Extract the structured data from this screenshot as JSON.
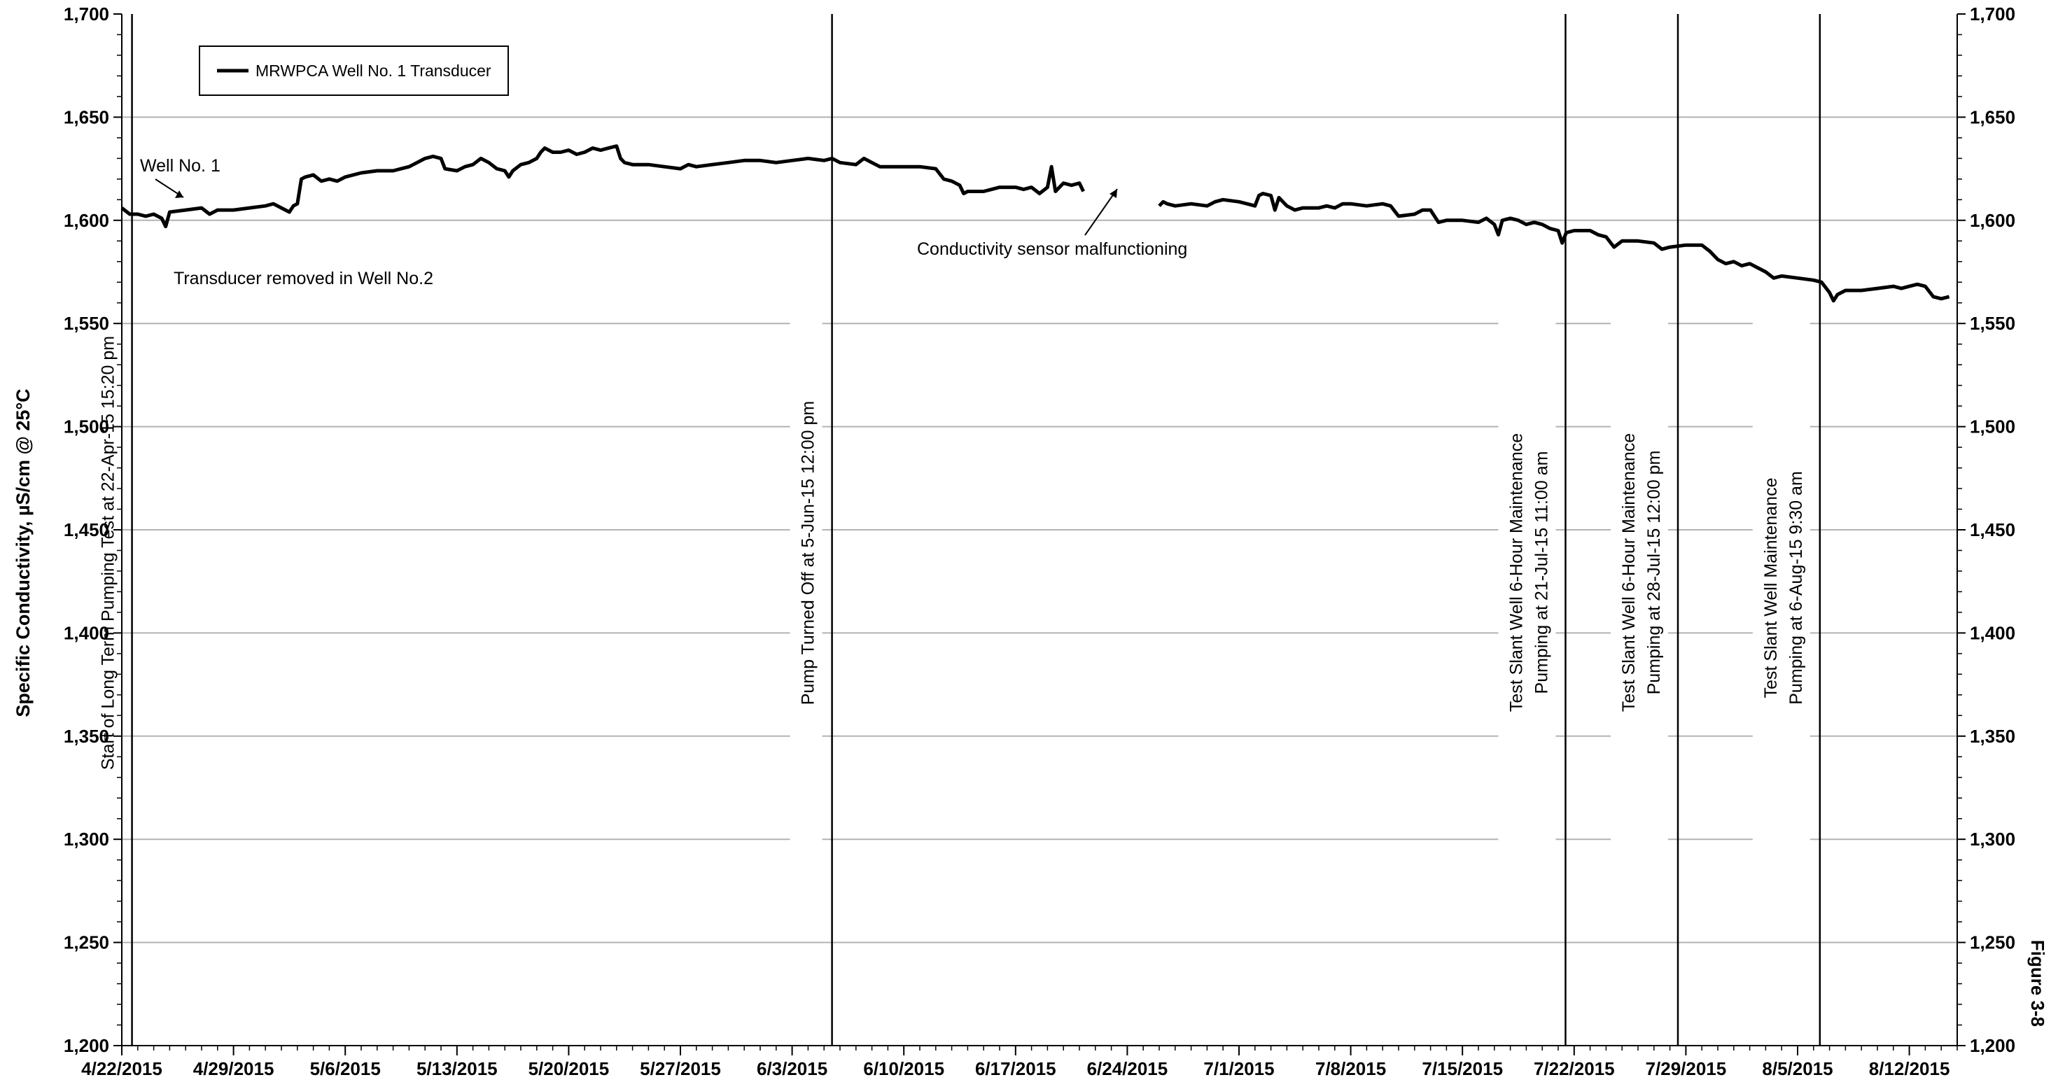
{
  "chart_data": {
    "type": "line",
    "ylabel": "Specific Conductivity, µS/cm @ 25°C",
    "ylim": [
      1200,
      1700
    ],
    "y_tick_step": 50,
    "y_minor_step": 10,
    "y_tick_labels": [
      "1,200",
      "1,250",
      "1,300",
      "1,350",
      "1,400",
      "1,450",
      "1,500",
      "1,550",
      "1,600",
      "1,650",
      "1,700"
    ],
    "xlim": [
      "2015-04-22",
      "2015-08-15"
    ],
    "x_tick_dates": [
      "2015-04-22",
      "2015-04-29",
      "2015-05-06",
      "2015-05-13",
      "2015-05-20",
      "2015-05-27",
      "2015-06-03",
      "2015-06-10",
      "2015-06-17",
      "2015-06-24",
      "2015-07-01",
      "2015-07-08",
      "2015-07-15",
      "2015-07-22",
      "2015-07-29",
      "2015-08-05",
      "2015-08-12"
    ],
    "x_tick_labels": [
      "4/22/2015",
      "4/29/2015",
      "5/6/2015",
      "5/13/2015",
      "5/20/2015",
      "5/27/2015",
      "6/3/2015",
      "6/10/2015",
      "6/17/2015",
      "6/24/2015",
      "7/1/2015",
      "7/8/2015",
      "7/15/2015",
      "7/22/2015",
      "7/29/2015",
      "8/5/2015",
      "8/12/2015"
    ],
    "grid": "horizontal",
    "legend_position": "top-left",
    "series": [
      {
        "name": "MRWPCA Well No. 1 Transducer",
        "color": "#000000",
        "segments": [
          [
            [
              "2015-04-22T00:00",
              1606
            ],
            [
              "2015-04-22T12:00",
              1603
            ],
            [
              "2015-04-23T00:00",
              1603
            ],
            [
              "2015-04-23T12:00",
              1602
            ],
            [
              "2015-04-24T00:00",
              1603
            ],
            [
              "2015-04-24T12:00",
              1601
            ],
            [
              "2015-04-24T18:00",
              1597
            ],
            [
              "2015-04-25T00:00",
              1604
            ],
            [
              "2015-04-26T00:00",
              1605
            ],
            [
              "2015-04-27T00:00",
              1606
            ],
            [
              "2015-04-27T12:00",
              1603
            ],
            [
              "2015-04-28T00:00",
              1605
            ],
            [
              "2015-04-29T00:00",
              1605
            ],
            [
              "2015-04-30T00:00",
              1606
            ],
            [
              "2015-05-01T00:00",
              1607
            ],
            [
              "2015-05-01T12:00",
              1608
            ],
            [
              "2015-05-02T00:00",
              1606
            ],
            [
              "2015-05-02T12:00",
              1604
            ],
            [
              "2015-05-02T18:00",
              1607
            ],
            [
              "2015-05-03T00:00",
              1608
            ],
            [
              "2015-05-03T06:00",
              1620
            ],
            [
              "2015-05-03T12:00",
              1621
            ],
            [
              "2015-05-04T00:00",
              1622
            ],
            [
              "2015-05-04T12:00",
              1619
            ],
            [
              "2015-05-05T00:00",
              1620
            ],
            [
              "2015-05-05T12:00",
              1619
            ],
            [
              "2015-05-06T00:00",
              1621
            ],
            [
              "2015-05-07T00:00",
              1623
            ],
            [
              "2015-05-08T00:00",
              1624
            ],
            [
              "2015-05-09T00:00",
              1624
            ],
            [
              "2015-05-09T12:00",
              1625
            ],
            [
              "2015-05-10T00:00",
              1626
            ],
            [
              "2015-05-10T12:00",
              1628
            ],
            [
              "2015-05-11T00:00",
              1630
            ],
            [
              "2015-05-11T12:00",
              1631
            ],
            [
              "2015-05-12T00:00",
              1630
            ],
            [
              "2015-05-12T06:00",
              1625
            ],
            [
              "2015-05-13T00:00",
              1624
            ],
            [
              "2015-05-13T12:00",
              1626
            ],
            [
              "2015-05-14T00:00",
              1627
            ],
            [
              "2015-05-14T12:00",
              1630
            ],
            [
              "2015-05-15T00:00",
              1628
            ],
            [
              "2015-05-15T12:00",
              1625
            ],
            [
              "2015-05-16T00:00",
              1624
            ],
            [
              "2015-05-16T06:00",
              1621
            ],
            [
              "2015-05-16T12:00",
              1624
            ],
            [
              "2015-05-17T00:00",
              1627
            ],
            [
              "2015-05-17T12:00",
              1628
            ],
            [
              "2015-05-18T00:00",
              1630
            ],
            [
              "2015-05-18T06:00",
              1633
            ],
            [
              "2015-05-18T12:00",
              1635
            ],
            [
              "2015-05-19T00:00",
              1633
            ],
            [
              "2015-05-19T12:00",
              1633
            ],
            [
              "2015-05-20T00:00",
              1634
            ],
            [
              "2015-05-20T12:00",
              1632
            ],
            [
              "2015-05-21T00:00",
              1633
            ],
            [
              "2015-05-21T12:00",
              1635
            ],
            [
              "2015-05-22T00:00",
              1634
            ],
            [
              "2015-05-22T12:00",
              1635
            ],
            [
              "2015-05-23T00:00",
              1636
            ],
            [
              "2015-05-23T06:00",
              1630
            ],
            [
              "2015-05-23T12:00",
              1628
            ],
            [
              "2015-05-24T00:00",
              1627
            ],
            [
              "2015-05-25T00:00",
              1627
            ],
            [
              "2015-05-26T00:00",
              1626
            ],
            [
              "2015-05-27T00:00",
              1625
            ],
            [
              "2015-05-27T12:00",
              1627
            ],
            [
              "2015-05-28T00:00",
              1626
            ],
            [
              "2015-05-29T00:00",
              1627
            ],
            [
              "2015-05-30T00:00",
              1628
            ],
            [
              "2015-05-31T00:00",
              1629
            ],
            [
              "2015-06-01T00:00",
              1629
            ],
            [
              "2015-06-02T00:00",
              1628
            ],
            [
              "2015-06-03T00:00",
              1629
            ],
            [
              "2015-06-04T00:00",
              1630
            ],
            [
              "2015-06-05T00:00",
              1629
            ],
            [
              "2015-06-05T12:00",
              1630
            ],
            [
              "2015-06-06T00:00",
              1628
            ],
            [
              "2015-06-07T00:00",
              1627
            ],
            [
              "2015-06-07T12:00",
              1630
            ],
            [
              "2015-06-08T00:00",
              1628
            ],
            [
              "2015-06-08T12:00",
              1626
            ],
            [
              "2015-06-09T00:00",
              1626
            ],
            [
              "2015-06-10T00:00",
              1626
            ],
            [
              "2015-06-11T00:00",
              1626
            ],
            [
              "2015-06-12T00:00",
              1625
            ],
            [
              "2015-06-12T12:00",
              1620
            ],
            [
              "2015-06-13T00:00",
              1619
            ],
            [
              "2015-06-13T12:00",
              1617
            ],
            [
              "2015-06-13T18:00",
              1613
            ],
            [
              "2015-06-14T00:00",
              1614
            ],
            [
              "2015-06-15T00:00",
              1614
            ],
            [
              "2015-06-15T12:00",
              1615
            ],
            [
              "2015-06-16T00:00",
              1616
            ],
            [
              "2015-06-17T00:00",
              1616
            ],
            [
              "2015-06-17T12:00",
              1615
            ],
            [
              "2015-06-18T00:00",
              1616
            ],
            [
              "2015-06-18T12:00",
              1613
            ],
            [
              "2015-06-19T00:00",
              1616
            ],
            [
              "2015-06-19T06:00",
              1626
            ],
            [
              "2015-06-19T12:00",
              1614
            ],
            [
              "2015-06-20T00:00",
              1618
            ],
            [
              "2015-06-20T12:00",
              1617
            ],
            [
              "2015-06-21T00:00",
              1618
            ],
            [
              "2015-06-21T06:00",
              1614
            ]
          ],
          [
            [
              "2015-06-26T00:00",
              1607
            ],
            [
              "2015-06-26T06:00",
              1609
            ],
            [
              "2015-06-26T12:00",
              1608
            ],
            [
              "2015-06-27T00:00",
              1607
            ],
            [
              "2015-06-28T00:00",
              1608
            ],
            [
              "2015-06-29T00:00",
              1607
            ],
            [
              "2015-06-29T12:00",
              1609
            ],
            [
              "2015-06-30T00:00",
              1610
            ],
            [
              "2015-07-01T00:00",
              1609
            ],
            [
              "2015-07-01T12:00",
              1608
            ],
            [
              "2015-07-02T00:00",
              1607
            ],
            [
              "2015-07-02T06:00",
              1612
            ],
            [
              "2015-07-02T12:00",
              1613
            ],
            [
              "2015-07-03T00:00",
              1612
            ],
            [
              "2015-07-03T06:00",
              1605
            ],
            [
              "2015-07-03T12:00",
              1611
            ],
            [
              "2015-07-04T00:00",
              1607
            ],
            [
              "2015-07-04T12:00",
              1605
            ],
            [
              "2015-07-05T00:00",
              1606
            ],
            [
              "2015-07-06T00:00",
              1606
            ],
            [
              "2015-07-06T12:00",
              1607
            ],
            [
              "2015-07-07T00:00",
              1606
            ],
            [
              "2015-07-07T12:00",
              1608
            ],
            [
              "2015-07-08T00:00",
              1608
            ],
            [
              "2015-07-09T00:00",
              1607
            ],
            [
              "2015-07-10T00:00",
              1608
            ],
            [
              "2015-07-10T12:00",
              1607
            ],
            [
              "2015-07-11T00:00",
              1602
            ],
            [
              "2015-07-12T00:00",
              1603
            ],
            [
              "2015-07-12T12:00",
              1605
            ],
            [
              "2015-07-13T00:00",
              1605
            ],
            [
              "2015-07-13T12:00",
              1599
            ],
            [
              "2015-07-14T00:00",
              1600
            ],
            [
              "2015-07-15T00:00",
              1600
            ],
            [
              "2015-07-16T00:00",
              1599
            ],
            [
              "2015-07-16T12:00",
              1601
            ],
            [
              "2015-07-17T00:00",
              1598
            ],
            [
              "2015-07-17T06:00",
              1593
            ],
            [
              "2015-07-17T12:00",
              1600
            ],
            [
              "2015-07-18T00:00",
              1601
            ],
            [
              "2015-07-18T12:00",
              1600
            ],
            [
              "2015-07-19T00:00",
              1598
            ],
            [
              "2015-07-19T12:00",
              1599
            ],
            [
              "2015-07-20T00:00",
              1598
            ],
            [
              "2015-07-20T12:00",
              1596
            ],
            [
              "2015-07-21T00:00",
              1595
            ],
            [
              "2015-07-21T06:00",
              1589
            ],
            [
              "2015-07-21T12:00",
              1594
            ],
            [
              "2015-07-22T00:00",
              1595
            ],
            [
              "2015-07-23T00:00",
              1595
            ],
            [
              "2015-07-23T12:00",
              1593
            ],
            [
              "2015-07-24T00:00",
              1592
            ],
            [
              "2015-07-24T12:00",
              1587
            ],
            [
              "2015-07-25T00:00",
              1590
            ],
            [
              "2015-07-26T00:00",
              1590
            ],
            [
              "2015-07-27T00:00",
              1589
            ],
            [
              "2015-07-27T12:00",
              1586
            ],
            [
              "2015-07-28T00:00",
              1587
            ],
            [
              "2015-07-29T00:00",
              1588
            ],
            [
              "2015-07-30T00:00",
              1588
            ],
            [
              "2015-07-30T12:00",
              1585
            ],
            [
              "2015-07-31T00:00",
              1581
            ],
            [
              "2015-07-31T12:00",
              1579
            ],
            [
              "2015-08-01T00:00",
              1580
            ],
            [
              "2015-08-01T12:00",
              1578
            ],
            [
              "2015-08-02T00:00",
              1579
            ],
            [
              "2015-08-02T12:00",
              1577
            ],
            [
              "2015-08-03T00:00",
              1575
            ],
            [
              "2015-08-03T12:00",
              1572
            ],
            [
              "2015-08-04T00:00",
              1573
            ],
            [
              "2015-08-05T00:00",
              1572
            ],
            [
              "2015-08-06T00:00",
              1571
            ],
            [
              "2015-08-06T12:00",
              1570
            ],
            [
              "2015-08-07T00:00",
              1565
            ],
            [
              "2015-08-07T06:00",
              1561
            ],
            [
              "2015-08-07T12:00",
              1564
            ],
            [
              "2015-08-08T00:00",
              1566
            ],
            [
              "2015-08-09T00:00",
              1566
            ],
            [
              "2015-08-10T00:00",
              1567
            ],
            [
              "2015-08-11T00:00",
              1568
            ],
            [
              "2015-08-11T12:00",
              1567
            ],
            [
              "2015-08-12T00:00",
              1568
            ],
            [
              "2015-08-12T12:00",
              1569
            ],
            [
              "2015-08-13T00:00",
              1568
            ],
            [
              "2015-08-13T12:00",
              1563
            ],
            [
              "2015-08-14T00:00",
              1562
            ],
            [
              "2015-08-14T12:00",
              1563
            ]
          ]
        ]
      }
    ],
    "event_lines": [
      {
        "date": "2015-04-22T15:20",
        "lines": [
          "Start of Long Term Pumping Test at 22-Apr-15 15:20 pm"
        ]
      },
      {
        "date": "2015-06-05T12:00",
        "lines": [
          "Pump Turned Off at 5-Jun-15 12:00 pm"
        ]
      },
      {
        "date": "2015-07-21T11:00",
        "lines": [
          "Test Slant Well 6-Hour Maintenance",
          "Pumping at 21-Jul-15 11:00 am"
        ]
      },
      {
        "date": "2015-07-28T12:00",
        "lines": [
          "Test Slant Well 6-Hour Maintenance",
          "Pumping at 28-Jul-15 12:00 pm"
        ]
      },
      {
        "date": "2015-08-06T09:30",
        "lines": [
          "Test Slant Well Maintenance",
          "Pumping at 6-Aug-15 9:30 am"
        ]
      }
    ],
    "annotations": [
      {
        "text": "Well No. 1",
        "arrow": true
      },
      {
        "text": "Transducer removed in Well No.2",
        "arrow": false
      },
      {
        "text": "Conductivity sensor malfunctioning",
        "arrow": true
      }
    ],
    "figure_label": "Figure 3-8"
  }
}
